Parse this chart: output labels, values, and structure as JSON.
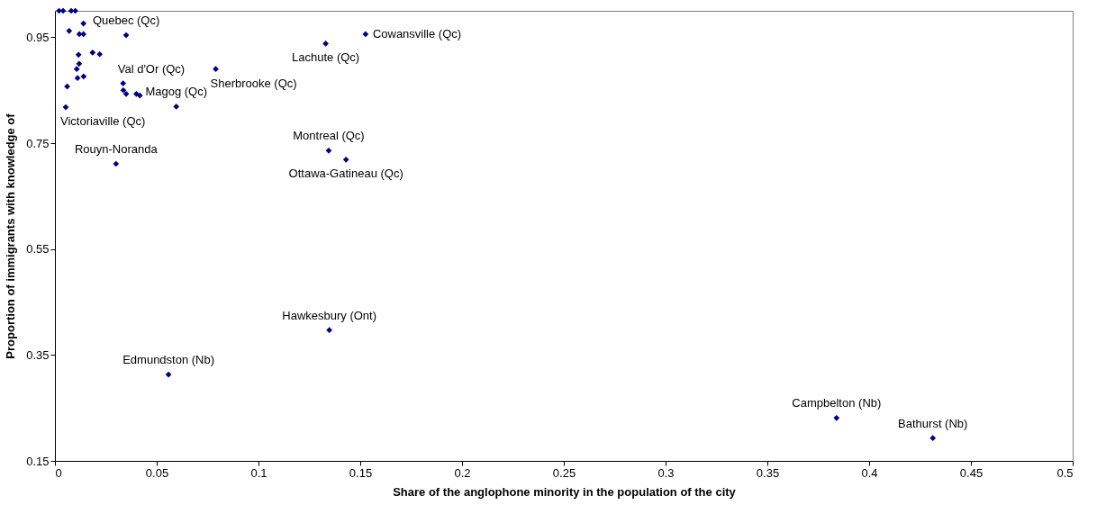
{
  "chart_data": {
    "type": "scatter",
    "xlabel": "Share of the anglophone minority in the population of the city",
    "ylabel": "Proportion of immigrants with knowledge of",
    "series": [
      {
        "color": "#000080",
        "x": [
          0.002,
          0.004,
          0.008,
          0.01,
          0.014,
          0.007,
          0.012,
          0.014,
          0.035,
          0.0185,
          0.022,
          0.0116,
          0.0119,
          0.0107,
          0.0111,
          0.0141,
          0.006,
          0.0335,
          0.0336,
          0.035,
          0.04,
          0.0417,
          0.079,
          0.0596,
          0.0053,
          0.03,
          0.133,
          0.1526,
          0.1345,
          0.143,
          0.1348,
          0.0558,
          0.384,
          0.4313
        ],
        "values": [
          1.0,
          1.0,
          1.0,
          1.0,
          0.976,
          0.962,
          0.956,
          0.956,
          0.954,
          0.921,
          0.918,
          0.917,
          0.9,
          0.89,
          0.873,
          0.876,
          0.857,
          0.863,
          0.85,
          0.843,
          0.843,
          0.84,
          0.89,
          0.819,
          0.818,
          0.711,
          0.938,
          0.956,
          0.736,
          0.719,
          0.397,
          0.313,
          0.231,
          0.193
        ]
      }
    ],
    "annotations": [
      {
        "text": "Cowansville (Qc)",
        "x": 0.1526,
        "y": 0.956
      },
      {
        "text": "Lachute (Qc)",
        "x": 0.133,
        "y": 0.938
      },
      {
        "text": "Quebec (Qc)",
        "x": 0.035,
        "y": 0.954
      },
      {
        "text": "Val d'Or (Qc)",
        "x": 0.0335,
        "y": 0.863
      },
      {
        "text": "Magog (Qc)",
        "x": 0.0596,
        "y": 0.819
      },
      {
        "text": "Sherbrooke (Qc)",
        "x": 0.079,
        "y": 0.89
      },
      {
        "text": "Victoriaville (Qc)",
        "x": 0.0053,
        "y": 0.818
      },
      {
        "text": "Montreal (Qc)",
        "x": 0.1345,
        "y": 0.736
      },
      {
        "text": "Ottawa-Gatineau (Qc)",
        "x": 0.143,
        "y": 0.719
      },
      {
        "text": "Rouyn-Noranda",
        "x": 0.03,
        "y": 0.711
      },
      {
        "text": "Hawkesbury (Ont)",
        "x": 0.1348,
        "y": 0.397
      },
      {
        "text": "Edmundston (Nb)",
        "x": 0.0558,
        "y": 0.313
      },
      {
        "text": "Campbelton (Nb)",
        "x": 0.384,
        "y": 0.231
      },
      {
        "text": "Bathurst (Nb)",
        "x": 0.4313,
        "y": 0.193
      }
    ],
    "xlim": [
      0,
      0.5
    ],
    "xticks": [
      0,
      0.05,
      0.1,
      0.15,
      0.2,
      0.25,
      0.3,
      0.35,
      0.4,
      0.45,
      0.5
    ],
    "ylim": [
      0.15,
      1.0
    ],
    "yticks": [
      0.15,
      0.35,
      0.55,
      0.75,
      0.95
    ],
    "grid": false,
    "legend": false,
    "marker": "diamond"
  }
}
